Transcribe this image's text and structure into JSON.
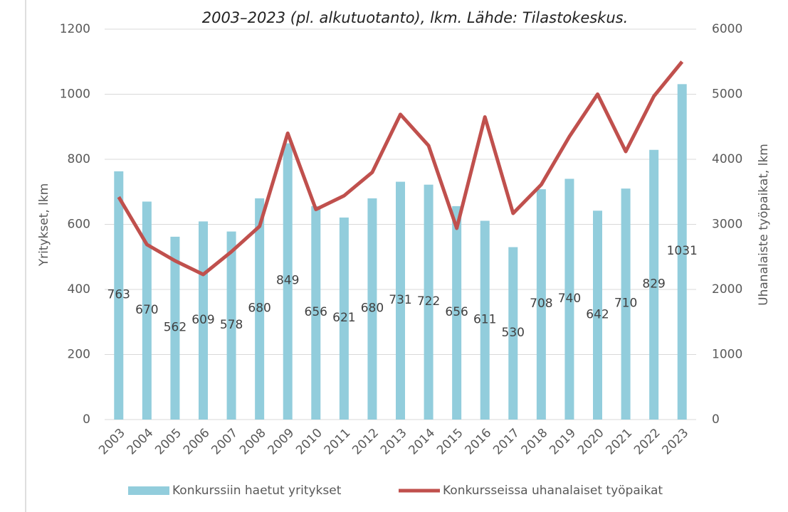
{
  "chart_data": {
    "type": "bar-line",
    "title": "2003–2023 (pl. alkutuotanto), lkm. Lähde: Tilastokeskus.",
    "y_label": "Yritykset, lkm",
    "y2_label": "Uhanalaiste työpaikat, lkm",
    "categories": [
      "2003",
      "2004",
      "2005",
      "2006",
      "2007",
      "2008",
      "2009",
      "2010",
      "2011",
      "2012",
      "2013",
      "2014",
      "2015",
      "2016",
      "2017",
      "2018",
      "2019",
      "2020",
      "2021",
      "2022",
      "2023"
    ],
    "series": [
      {
        "name": "Konkurssiin haetut yritykset",
        "type": "bar",
        "color": "#92cddc",
        "values": [
          763,
          670,
          562,
          609,
          578,
          680,
          849,
          656,
          621,
          680,
          731,
          722,
          656,
          611,
          530,
          708,
          740,
          642,
          710,
          829,
          1031
        ]
      },
      {
        "name": "Konkursseissa uhanalaiset työpaikat",
        "type": "line",
        "axis": "y2",
        "color": "#c0504d",
        "values": [
          3420,
          2690,
          2440,
          2230,
          2580,
          2970,
          4400,
          3230,
          3440,
          3800,
          4690,
          4210,
          2940,
          4650,
          3170,
          3610,
          4350,
          5000,
          4120,
          4970,
          5500
        ]
      }
    ],
    "ylim": [
      0,
      1200
    ],
    "yticks": [
      0,
      200,
      400,
      600,
      800,
      1000,
      1200
    ],
    "y2lim": [
      0,
      6000
    ],
    "y2ticks": [
      0,
      1000,
      2000,
      3000,
      4000,
      5000,
      6000
    ],
    "grid": true,
    "legend": "bottom"
  }
}
